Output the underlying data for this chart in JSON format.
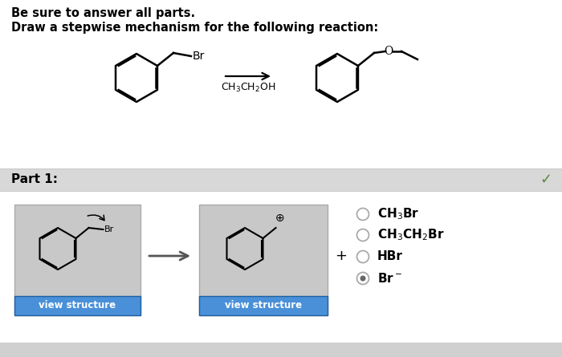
{
  "bg_color": "#ffffff",
  "header_text1": "Be sure to answer all parts.",
  "header_text2": "Draw a stepwise mechanism for the following reaction:",
  "reagent_label": "CH$_3$CH$_2$OH",
  "part_label": "Part 1:",
  "part_bg": "#d8d8d8",
  "checkmark_color": "#5a8a3c",
  "options": [
    "CH$_3$Br",
    "CH$_3$CH$_2$Br",
    "HBr",
    "Br$^-$"
  ],
  "option_selected": 3,
  "plus_sign": "+",
  "view_structure_btn_color": "#4a90d9",
  "view_structure_text": "view structure",
  "btn_border_color": "#2060a0",
  "box_bg": "#c8c8c8",
  "box_border": "#aaaaaa",
  "bottom_bar_color": "#d0d0d0",
  "separator_color": "#cccccc",
  "part_separator": "#bbbbbb"
}
